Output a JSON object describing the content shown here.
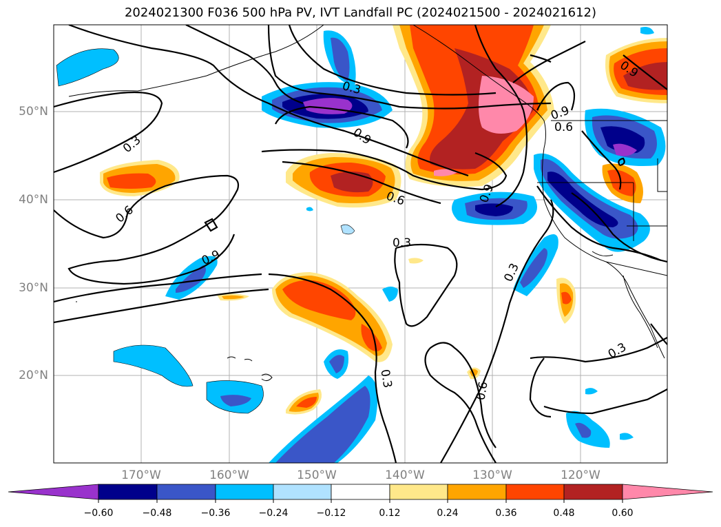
{
  "title": "2024021300 F036 500 hPa PV, IVT Landfall PC (2024021500 - 2024021612)",
  "lat_labels": [
    "50°N",
    "40°N",
    "30°N",
    "20°N"
  ],
  "lon_labels": [
    "170°W",
    "160°W",
    "150°W",
    "140°W",
    "130°W",
    "120°W"
  ],
  "contour_labels": [
    "0.3",
    "0.6",
    "0.9"
  ],
  "colorbar": {
    "ticks": [
      "−0.60",
      "−0.48",
      "−0.36",
      "−0.24",
      "−0.12",
      "0.12",
      "0.24",
      "0.36",
      "0.48",
      "0.60"
    ],
    "colors": [
      "#9932cc",
      "#00008b",
      "#3a56c8",
      "#00bfff",
      "#b0e2ff",
      "#ffffff",
      "#ffe88a",
      "#ffa500",
      "#ff4500",
      "#b22222",
      "#ff88aa"
    ]
  }
}
